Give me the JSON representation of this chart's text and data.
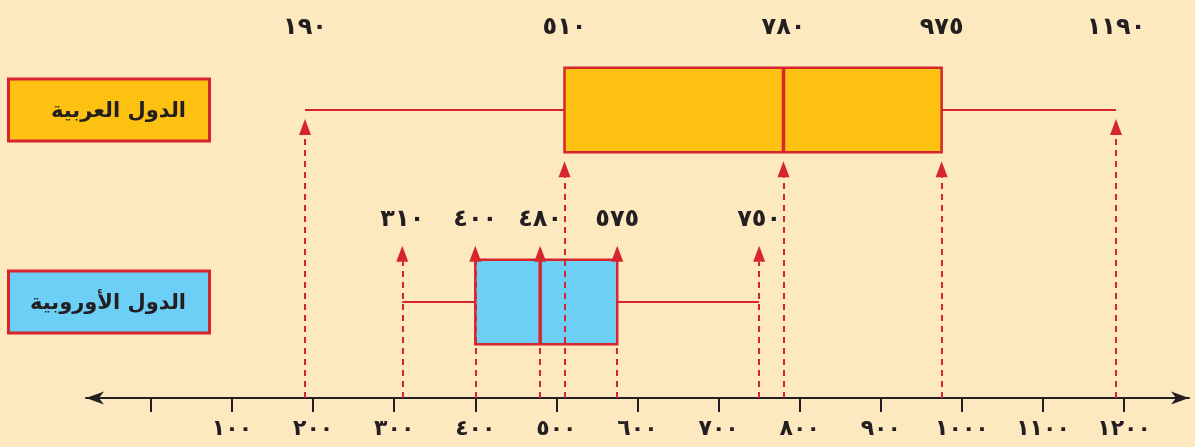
{
  "chart_data": {
    "type": "box",
    "orientation": "horizontal",
    "categories": [
      "الدول العربية",
      "الدول الأوروبية"
    ],
    "colors": [
      "#fdc112",
      "#6dcff6"
    ],
    "boxes": [
      {
        "low": 190,
        "q1": 510,
        "median": 780,
        "q3": 975,
        "high": 1190
      },
      {
        "low": 310,
        "q1": 400,
        "median": 480,
        "q3": 575,
        "high": 750
      }
    ],
    "xlim": [
      -80,
      1280
    ],
    "xticks": [
      {
        "value": 0,
        "label": null
      },
      {
        "value": 100,
        "label": "١٠٠"
      },
      {
        "value": 200,
        "label": "٢٠٠"
      },
      {
        "value": 300,
        "label": "٣٠٠"
      },
      {
        "value": 400,
        "label": "٤٠٠"
      },
      {
        "value": 500,
        "label": "٥٠٠"
      },
      {
        "value": 600,
        "label": "٦٠٠"
      },
      {
        "value": 700,
        "label": "٧٠٠"
      },
      {
        "value": 800,
        "label": "٨٠٠"
      },
      {
        "value": 900,
        "label": "٩٠٠"
      },
      {
        "value": 1000,
        "label": "١٠٠٠"
      },
      {
        "value": 1100,
        "label": "١١٠٠"
      },
      {
        "value": 1200,
        "label": "١٢٠٠"
      }
    ],
    "ref_lines": [
      {
        "axis": "x",
        "value": 190,
        "color": "#d7252d",
        "line_style": "dashed"
      },
      {
        "axis": "x",
        "value": 510,
        "color": "#d7252d",
        "line_style": "dashed"
      },
      {
        "axis": "x",
        "value": 780,
        "color": "#d7252d",
        "line_style": "dashed"
      },
      {
        "axis": "x",
        "value": 975,
        "color": "#d7252d",
        "line_style": "dashed"
      },
      {
        "axis": "x",
        "value": 1190,
        "color": "#d7252d",
        "line_style": "dashed"
      },
      {
        "axis": "x",
        "value": 310,
        "color": "#d7252d",
        "line_style": "dashed"
      },
      {
        "axis": "x",
        "value": 400,
        "color": "#d7252d",
        "line_style": "dashed"
      },
      {
        "axis": "x",
        "value": 480,
        "color": "#d7252d",
        "line_style": "dashed"
      },
      {
        "axis": "x",
        "value": 575,
        "color": "#d7252d",
        "line_style": "dashed"
      },
      {
        "axis": "x",
        "value": 750,
        "color": "#d7252d",
        "line_style": "dashed"
      }
    ],
    "annotations": [
      {
        "text": "١٩٠",
        "x": 190,
        "y": "الدول العربية"
      },
      {
        "text": "٥١٠",
        "x": 510,
        "y": "الدول العربية"
      },
      {
        "text": "٧٨٠",
        "x": 780,
        "y": "الدول العربية"
      },
      {
        "text": "٩٧٥",
        "x": 975,
        "y": "الدول العربية"
      },
      {
        "text": "١١٩٠",
        "x": 1190,
        "y": "الدول العربية"
      },
      {
        "text": "٣١٠",
        "x": 310,
        "y": "الدول الأوروبية"
      },
      {
        "text": "٤٠٠",
        "x": 400,
        "y": "الدول الأوروبية"
      },
      {
        "text": "٤٨٠",
        "x": 480,
        "y": "الدول الأوروبية"
      },
      {
        "text": "٥٧٥",
        "x": 575,
        "y": "الدول الأوروبية"
      },
      {
        "text": "٧٥٠",
        "x": 750,
        "y": "الدول الأوروبية"
      }
    ]
  }
}
